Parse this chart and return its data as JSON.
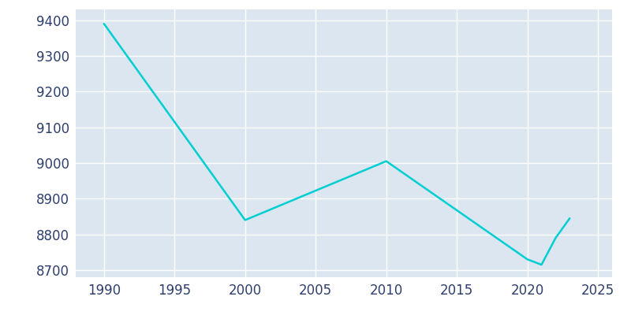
{
  "years": [
    1990,
    2000,
    2010,
    2020,
    2021,
    2022,
    2023
  ],
  "population": [
    9390,
    8840,
    9005,
    8730,
    8715,
    8790,
    8845
  ],
  "line_color": "#00CED1",
  "figure_bg_color": "#ffffff",
  "plot_bg_color": "#dce6f0",
  "tick_color": "#2e3f6e",
  "grid_color": "#ffffff",
  "xlim": [
    1988,
    2026
  ],
  "ylim": [
    8680,
    9430
  ],
  "yticks": [
    8700,
    8800,
    8900,
    9000,
    9100,
    9200,
    9300,
    9400
  ],
  "xticks": [
    1990,
    1995,
    2000,
    2005,
    2010,
    2015,
    2020,
    2025
  ],
  "line_width": 1.8,
  "tick_labelsize": 12
}
